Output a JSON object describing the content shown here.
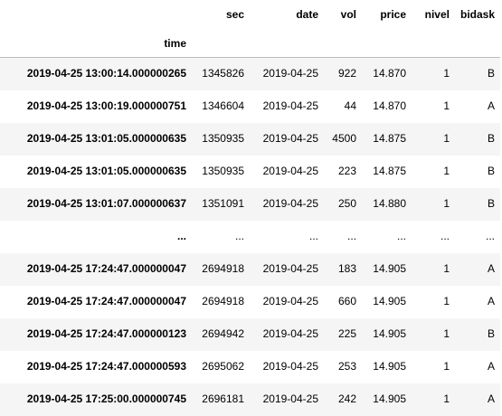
{
  "table": {
    "columns": [
      "sec",
      "date",
      "vol",
      "price",
      "nivel",
      "bidask"
    ],
    "index_name": "time",
    "rows": [
      {
        "time": "2019-04-25 13:00:14.000000265",
        "cells": [
          "1345826",
          "2019-04-25",
          "922",
          "14.870",
          "1",
          "B"
        ]
      },
      {
        "time": "2019-04-25 13:00:19.000000751",
        "cells": [
          "1346604",
          "2019-04-25",
          "44",
          "14.870",
          "1",
          "A"
        ]
      },
      {
        "time": "2019-04-25 13:01:05.000000635",
        "cells": [
          "1350935",
          "2019-04-25",
          "4500",
          "14.875",
          "1",
          "B"
        ]
      },
      {
        "time": "2019-04-25 13:01:05.000000635",
        "cells": [
          "1350935",
          "2019-04-25",
          "223",
          "14.875",
          "1",
          "B"
        ]
      },
      {
        "time": "2019-04-25 13:01:07.000000637",
        "cells": [
          "1351091",
          "2019-04-25",
          "250",
          "14.880",
          "1",
          "B"
        ]
      },
      {
        "time": "...",
        "cells": [
          "...",
          "...",
          "...",
          "...",
          "...",
          "..."
        ]
      },
      {
        "time": "2019-04-25 17:24:47.000000047",
        "cells": [
          "2694918",
          "2019-04-25",
          "183",
          "14.905",
          "1",
          "A"
        ]
      },
      {
        "time": "2019-04-25 17:24:47.000000047",
        "cells": [
          "2694918",
          "2019-04-25",
          "660",
          "14.905",
          "1",
          "A"
        ]
      },
      {
        "time": "2019-04-25 17:24:47.000000123",
        "cells": [
          "2694942",
          "2019-04-25",
          "225",
          "14.905",
          "1",
          "B"
        ]
      },
      {
        "time": "2019-04-25 17:24:47.000000593",
        "cells": [
          "2695062",
          "2019-04-25",
          "253",
          "14.905",
          "1",
          "A"
        ]
      },
      {
        "time": "2019-04-25 17:25:00.000000745",
        "cells": [
          "2696181",
          "2019-04-25",
          "242",
          "14.905",
          "1",
          "A"
        ]
      }
    ]
  }
}
